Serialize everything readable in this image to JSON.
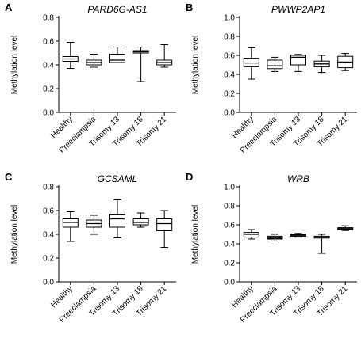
{
  "chart_data": [
    {
      "type": "box",
      "panel_letter": "A",
      "title": "PARD6G-AS1",
      "ylabel": "Methylation level",
      "ylim": [
        0.0,
        0.8
      ],
      "yticks": [
        "0.0",
        "0.2",
        "0.4",
        "0.6",
        "0.8"
      ],
      "categories": [
        "Healthy",
        "Preeclampsia",
        "Trisomy 13",
        "Trisomy 18",
        "Trisomy 21"
      ],
      "boxes": [
        {
          "min": 0.37,
          "q1": 0.43,
          "median": 0.45,
          "q3": 0.47,
          "max": 0.59
        },
        {
          "min": 0.38,
          "q1": 0.4,
          "median": 0.42,
          "q3": 0.44,
          "max": 0.49
        },
        {
          "min": 0.42,
          "q1": 0.42,
          "median": 0.44,
          "q3": 0.49,
          "max": 0.55
        },
        {
          "min": 0.26,
          "q1": 0.5,
          "median": 0.51,
          "q3": 0.52,
          "max": 0.55
        },
        {
          "min": 0.38,
          "q1": 0.4,
          "median": 0.42,
          "q3": 0.44,
          "max": 0.57
        }
      ]
    },
    {
      "type": "box",
      "panel_letter": "B",
      "title": "PWWP2AP1",
      "ylabel": "Methylation level",
      "ylim": [
        0.0,
        1.0
      ],
      "yticks": [
        "0.0",
        "0.2",
        "0.4",
        "0.6",
        "0.8",
        "1.0"
      ],
      "categories": [
        "Healthy",
        "Preeclampsia",
        "Trisomy 13",
        "Trisomy 18",
        "Trisomy 21"
      ],
      "boxes": [
        {
          "min": 0.35,
          "q1": 0.48,
          "median": 0.52,
          "q3": 0.57,
          "max": 0.68
        },
        {
          "min": 0.43,
          "q1": 0.46,
          "median": 0.49,
          "q3": 0.55,
          "max": 0.58
        },
        {
          "min": 0.43,
          "q1": 0.5,
          "median": 0.58,
          "q3": 0.6,
          "max": 0.61
        },
        {
          "min": 0.42,
          "q1": 0.48,
          "median": 0.51,
          "q3": 0.54,
          "max": 0.6
        },
        {
          "min": 0.44,
          "q1": 0.47,
          "median": 0.53,
          "q3": 0.59,
          "max": 0.62
        }
      ]
    },
    {
      "type": "box",
      "panel_letter": "C",
      "title": "GCSAML",
      "ylabel": "Methylation level",
      "ylim": [
        0.0,
        0.8
      ],
      "yticks": [
        "0.0",
        "0.2",
        "0.4",
        "0.6",
        "0.8"
      ],
      "categories": [
        "Healthy",
        "Preeclampsia",
        "Trisomy 13",
        "Trisomy 18",
        "Trisomy 21"
      ],
      "boxes": [
        {
          "min": 0.34,
          "q1": 0.46,
          "median": 0.5,
          "q3": 0.53,
          "max": 0.59
        },
        {
          "min": 0.4,
          "q1": 0.46,
          "median": 0.49,
          "q3": 0.52,
          "max": 0.56
        },
        {
          "min": 0.37,
          "q1": 0.46,
          "median": 0.53,
          "q3": 0.57,
          "max": 0.69
        },
        {
          "min": 0.46,
          "q1": 0.48,
          "median": 0.5,
          "q3": 0.53,
          "max": 0.58
        },
        {
          "min": 0.29,
          "q1": 0.43,
          "median": 0.49,
          "q3": 0.53,
          "max": 0.6
        }
      ]
    },
    {
      "type": "box",
      "panel_letter": "D",
      "title": "WRB",
      "ylabel": "Methylation level",
      "ylim": [
        0.0,
        1.0
      ],
      "yticks": [
        "0.0",
        "0.2",
        "0.4",
        "0.6",
        "0.8",
        "1.0"
      ],
      "categories": [
        "Healthy",
        "Preeclampsia",
        "Trisomy 13",
        "Trisomy 18",
        "Trisomy 21"
      ],
      "boxes": [
        {
          "min": 0.45,
          "q1": 0.47,
          "median": 0.5,
          "q3": 0.52,
          "max": 0.55
        },
        {
          "min": 0.43,
          "q1": 0.45,
          "median": 0.46,
          "q3": 0.48,
          "max": 0.5
        },
        {
          "min": 0.47,
          "q1": 0.48,
          "median": 0.49,
          "q3": 0.5,
          "max": 0.51
        },
        {
          "min": 0.3,
          "q1": 0.46,
          "median": 0.47,
          "q3": 0.48,
          "max": 0.5
        },
        {
          "min": 0.54,
          "q1": 0.55,
          "median": 0.56,
          "q3": 0.57,
          "max": 0.59
        }
      ]
    }
  ],
  "style": {
    "stroke": "#000000",
    "box_fill": "#ffffff"
  }
}
